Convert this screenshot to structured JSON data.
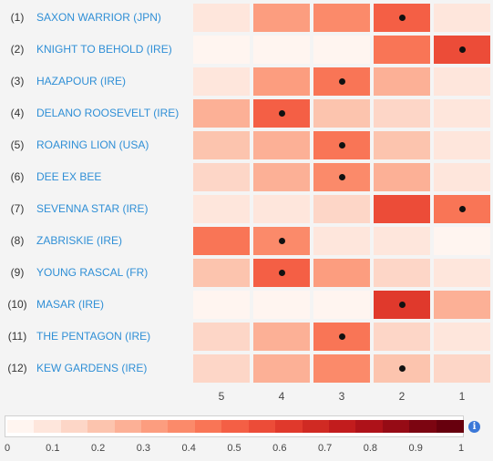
{
  "columns": [
    "5",
    "4",
    "3",
    "2",
    "1"
  ],
  "rows": [
    {
      "rank": "(1)",
      "horse": "SAXON WARRIOR (JPN)",
      "values": [
        0.08,
        0.32,
        0.38,
        0.48,
        0.06
      ],
      "marker": 3
    },
    {
      "rank": "(2)",
      "horse": "KNIGHT TO BEHOLD (IRE)",
      "values": [
        0.02,
        0.02,
        0.02,
        0.46,
        0.58
      ],
      "marker": 4
    },
    {
      "rank": "(3)",
      "horse": "HAZAPOUR (IRE)",
      "values": [
        0.08,
        0.33,
        0.45,
        0.28,
        0.04
      ],
      "marker": 2
    },
    {
      "rank": "(4)",
      "horse": "DELANO ROOSEVELT (IRE)",
      "values": [
        0.24,
        0.5,
        0.18,
        0.12,
        0.04
      ],
      "marker": 1
    },
    {
      "rank": "(5)",
      "horse": "ROARING LION (USA)",
      "values": [
        0.18,
        0.28,
        0.45,
        0.16,
        0.05
      ],
      "marker": 2
    },
    {
      "rank": "(6)",
      "horse": "DEE EX BEE",
      "values": [
        0.15,
        0.28,
        0.36,
        0.26,
        0.08
      ],
      "marker": 2
    },
    {
      "rank": "(7)",
      "horse": "SEVENNA STAR (IRE)",
      "values": [
        0.04,
        0.04,
        0.1,
        0.55,
        0.45
      ],
      "marker": 4
    },
    {
      "rank": "(8)",
      "horse": "ZABRISKIE (IRE)",
      "values": [
        0.45,
        0.4,
        0.08,
        0.06,
        0.03
      ],
      "marker": 1
    },
    {
      "rank": "(9)",
      "horse": "YOUNG RASCAL (FR)",
      "values": [
        0.16,
        0.5,
        0.3,
        0.14,
        0.04
      ],
      "marker": 1
    },
    {
      "rank": "(10)",
      "horse": "MASAR (IRE)",
      "values": [
        0.03,
        0.03,
        0.03,
        0.65,
        0.28
      ],
      "marker": 3
    },
    {
      "rank": "(11)",
      "horse": "THE PENTAGON (IRE)",
      "values": [
        0.12,
        0.28,
        0.46,
        0.12,
        0.08
      ],
      "marker": 2
    },
    {
      "rank": "(12)",
      "horse": "KEW GARDENS (IRE)",
      "values": [
        0.14,
        0.26,
        0.36,
        0.16,
        0.1
      ],
      "marker": 3
    }
  ],
  "legend": {
    "ticks": [
      "0",
      "0.1",
      "0.2",
      "0.3",
      "0.4",
      "0.5",
      "0.6",
      "0.7",
      "0.8",
      "0.9",
      "1"
    ],
    "colors": [
      "#fff5f0",
      "#fee6dc",
      "#fdd6c7",
      "#fcc4ae",
      "#fcb096",
      "#fc9d7f",
      "#fb8a6a",
      "#f97556",
      "#f45f45",
      "#ec4c38",
      "#e0392c",
      "#d02a23",
      "#c21c1d",
      "#ae1219",
      "#960b15",
      "#7c0511",
      "#67000d"
    ],
    "info_icon": "info-icon"
  },
  "chart_data": {
    "type": "heatmap",
    "x_categories": [
      "5",
      "4",
      "3",
      "2",
      "1"
    ],
    "y_categories": [
      "(1) SAXON WARRIOR (JPN)",
      "(2) KNIGHT TO BEHOLD (IRE)",
      "(3) HAZAPOUR (IRE)",
      "(4) DELANO ROOSEVELT (IRE)",
      "(5) ROARING LION (USA)",
      "(6) DEE EX BEE",
      "(7) SEVENNA STAR (IRE)",
      "(8) ZABRISKIE (IRE)",
      "(9) YOUNG RASCAL (FR)",
      "(10) MASAR (IRE)",
      "(11) THE PENTAGON (IRE)",
      "(12) KEW GARDENS (IRE)"
    ],
    "color_range": [
      0,
      1
    ]
  }
}
